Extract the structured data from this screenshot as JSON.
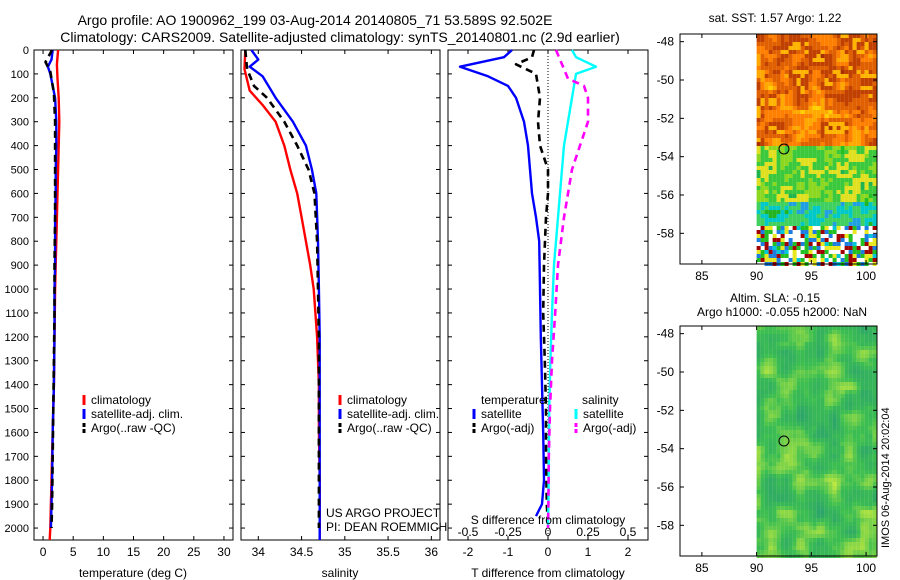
{
  "title": {
    "line1": "Argo profile: AO 1900962_199 03-Aug-2014 20140805_71 53.589S 92.502E",
    "line2": "Climatology: CARS2009. Satellite-adjusted climatology: synTS_20140801.nc (2.9d earlier)"
  },
  "colors": {
    "red": "#ff0000",
    "blue": "#0000ff",
    "black": "#000000",
    "cyan": "#00ffff",
    "magenta": "#ff00ff"
  },
  "credits": {
    "line1": "US ARGO PROJECT",
    "line2": "PI: DEAN ROEMMICH"
  },
  "timestamp": "IMOS 06-Aug-2014 20:02:04",
  "chart_data": [
    {
      "id": "temp",
      "type": "line",
      "xlabel": "temperature (deg C)",
      "xlim": [
        -1.5,
        31.5
      ],
      "xticks": [
        0,
        5,
        10,
        15,
        20,
        25,
        30
      ],
      "ylim": [
        0,
        2050
      ],
      "yticks": [
        0,
        100,
        200,
        300,
        400,
        500,
        600,
        700,
        800,
        900,
        1000,
        1100,
        1200,
        1300,
        1400,
        1500,
        1600,
        1700,
        1800,
        1900,
        2000
      ],
      "legend": [
        "climatology",
        "satellite-adj. clim.",
        "Argo(..raw -QC)"
      ],
      "series": [
        {
          "name": "climatology",
          "color": "red",
          "dash": "solid",
          "points": [
            [
              2.5,
              0
            ],
            [
              2.3,
              60
            ],
            [
              2.4,
              120
            ],
            [
              2.6,
              200
            ],
            [
              2.7,
              300
            ],
            [
              2.6,
              400
            ],
            [
              2.5,
              500
            ],
            [
              2.4,
              600
            ],
            [
              2.3,
              700
            ],
            [
              2.2,
              800
            ],
            [
              2.1,
              900
            ],
            [
              2.0,
              1000
            ],
            [
              1.9,
              1200
            ],
            [
              1.8,
              1400
            ],
            [
              1.6,
              1600
            ],
            [
              1.4,
              1800
            ],
            [
              1.2,
              2000
            ],
            [
              1.1,
              2050
            ]
          ]
        },
        {
          "name": "satellite-adj. clim.",
          "color": "blue",
          "dash": "solid",
          "points": [
            [
              1.6,
              0
            ],
            [
              1.4,
              40
            ],
            [
              0.8,
              70
            ],
            [
              1.2,
              100
            ],
            [
              1.6,
              150
            ],
            [
              2.0,
              200
            ],
            [
              2.2,
              300
            ],
            [
              2.2,
              400
            ],
            [
              2.1,
              500
            ],
            [
              2.1,
              600
            ],
            [
              2.0,
              700
            ],
            [
              2.0,
              800
            ],
            [
              2.0,
              900
            ],
            [
              1.9,
              1000
            ],
            [
              1.9,
              1200
            ],
            [
              1.8,
              1400
            ],
            [
              1.6,
              1600
            ],
            [
              1.5,
              1800
            ],
            [
              1.3,
              2000
            ]
          ]
        },
        {
          "name": "Argo(..raw -QC)",
          "color": "black",
          "dash": "dash",
          "points": [
            [
              1.5,
              0
            ],
            [
              0.4,
              50
            ],
            [
              1.2,
              90
            ],
            [
              1.8,
              180
            ],
            [
              2.0,
              300
            ],
            [
              2.0,
              500
            ],
            [
              2.0,
              700
            ],
            [
              1.9,
              900
            ],
            [
              1.9,
              1100
            ],
            [
              1.8,
              1300
            ],
            [
              1.7,
              1500
            ],
            [
              1.6,
              1700
            ],
            [
              1.5,
              1900
            ],
            [
              1.4,
              2000
            ]
          ]
        }
      ]
    },
    {
      "id": "sal",
      "type": "line",
      "xlabel": "salinity",
      "xlim": [
        33.8,
        36.1
      ],
      "xticks": [
        34,
        34.5,
        35,
        35.5,
        36
      ],
      "ylim": [
        0,
        2050
      ],
      "legend": [
        "climatology",
        "satellite-adj. clim.",
        "Argo(..raw -QC)"
      ],
      "series": [
        {
          "name": "climatology",
          "color": "red",
          "dash": "solid",
          "points": [
            [
              33.85,
              0
            ],
            [
              33.84,
              80
            ],
            [
              33.9,
              170
            ],
            [
              34.05,
              230
            ],
            [
              34.2,
              300
            ],
            [
              34.3,
              400
            ],
            [
              34.37,
              500
            ],
            [
              34.45,
              600
            ],
            [
              34.5,
              700
            ],
            [
              34.55,
              800
            ],
            [
              34.6,
              900
            ],
            [
              34.64,
              1000
            ],
            [
              34.68,
              1200
            ],
            [
              34.7,
              1400
            ],
            [
              34.7,
              1600
            ],
            [
              34.71,
              1800
            ],
            [
              34.71,
              2000
            ],
            [
              34.71,
              2050
            ]
          ]
        },
        {
          "name": "satellite-adj. clim.",
          "color": "blue",
          "dash": "solid",
          "points": [
            [
              33.92,
              0
            ],
            [
              34.0,
              40
            ],
            [
              33.9,
              70
            ],
            [
              34.05,
              110
            ],
            [
              34.2,
              200
            ],
            [
              34.4,
              300
            ],
            [
              34.55,
              400
            ],
            [
              34.62,
              500
            ],
            [
              34.67,
              600
            ],
            [
              34.69,
              800
            ],
            [
              34.7,
              1000
            ],
            [
              34.71,
              1200
            ],
            [
              34.71,
              1400
            ],
            [
              34.71,
              1600
            ],
            [
              34.71,
              1800
            ],
            [
              34.71,
              2000
            ],
            [
              34.71,
              2050
            ]
          ]
        },
        {
          "name": "Argo(..raw -QC)",
          "color": "black",
          "dash": "dash",
          "points": [
            [
              33.85,
              0
            ],
            [
              33.87,
              80
            ],
            [
              33.95,
              150
            ],
            [
              34.1,
              200
            ],
            [
              34.3,
              300
            ],
            [
              34.45,
              400
            ],
            [
              34.58,
              500
            ],
            [
              34.65,
              600
            ],
            [
              34.68,
              800
            ],
            [
              34.69,
              1000
            ],
            [
              34.7,
              1200
            ],
            [
              34.7,
              1400
            ],
            [
              34.7,
              1600
            ],
            [
              34.7,
              1800
            ],
            [
              34.7,
              2000
            ]
          ]
        }
      ]
    },
    {
      "id": "diff",
      "type": "line",
      "xlabel": "T difference from climatology",
      "xlabel_top": "S difference from climatology",
      "xlim": [
        -2.5,
        2.5
      ],
      "xticks": [
        -2,
        -1,
        0,
        1,
        2
      ],
      "sticks_labels": [
        "-0.5",
        "-0.25",
        "0",
        "0.25",
        "0.5"
      ],
      "sticks_pos": [
        -2,
        -1,
        0,
        1,
        2
      ],
      "ylim": [
        0,
        2050
      ],
      "legend_temp_title": "temperature",
      "legend_sal_title": "salinity",
      "legend_temp": [
        "satellite",
        "Argo(-adj)"
      ],
      "legend_sal": [
        "satellite",
        "Argo(-adj)"
      ],
      "series": [
        {
          "name": "T satellite",
          "color": "blue",
          "dash": "solid",
          "points": [
            [
              -0.9,
              0
            ],
            [
              -1.1,
              30
            ],
            [
              -2.2,
              70
            ],
            [
              -1.5,
              110
            ],
            [
              -1.0,
              150
            ],
            [
              -0.8,
              200
            ],
            [
              -0.6,
              300
            ],
            [
              -0.5,
              400
            ],
            [
              -0.45,
              500
            ],
            [
              -0.4,
              600
            ],
            [
              -0.3,
              700
            ],
            [
              -0.22,
              800
            ],
            [
              -0.2,
              1000
            ],
            [
              -0.18,
              1200
            ],
            [
              -0.15,
              1400
            ],
            [
              -0.12,
              1600
            ],
            [
              -0.1,
              1800
            ],
            [
              -0.15,
              1900
            ],
            [
              -0.3,
              1950
            ]
          ]
        },
        {
          "name": "T Argo(-adj)",
          "color": "black",
          "dash": "dash",
          "points": [
            [
              -0.35,
              0
            ],
            [
              -0.4,
              30
            ],
            [
              -0.8,
              60
            ],
            [
              -0.3,
              100
            ],
            [
              -0.2,
              200
            ],
            [
              -0.25,
              300
            ],
            [
              -0.2,
              400
            ],
            [
              0.0,
              500
            ],
            [
              0.0,
              600
            ],
            [
              -0.05,
              700
            ],
            [
              -0.1,
              900
            ],
            [
              -0.12,
              1100
            ],
            [
              -0.08,
              1300
            ],
            [
              -0.05,
              1500
            ],
            [
              -0.05,
              1700
            ],
            [
              -0.03,
              1900
            ],
            [
              0.0,
              2000
            ]
          ]
        },
        {
          "name": "S satellite",
          "color": "cyan",
          "dash": "solid",
          "points": [
            [
              0.6,
              0
            ],
            [
              0.7,
              30
            ],
            [
              1.2,
              70
            ],
            [
              0.7,
              100
            ],
            [
              0.6,
              200
            ],
            [
              0.5,
              300
            ],
            [
              0.4,
              400
            ],
            [
              0.35,
              500
            ],
            [
              0.3,
              600
            ],
            [
              0.25,
              700
            ],
            [
              0.15,
              900
            ],
            [
              0.1,
              1100
            ],
            [
              0.06,
              1300
            ],
            [
              0.03,
              1500
            ],
            [
              0.02,
              1700
            ],
            [
              0.01,
              1900
            ],
            [
              0.0,
              2000
            ]
          ]
        },
        {
          "name": "S Argo(-adj)",
          "color": "magenta",
          "dash": "dash",
          "points": [
            [
              0.2,
              0
            ],
            [
              0.4,
              80
            ],
            [
              0.5,
              120
            ],
            [
              0.9,
              150
            ],
            [
              1.0,
              200
            ],
            [
              1.0,
              300
            ],
            [
              0.8,
              400
            ],
            [
              0.6,
              500
            ],
            [
              0.5,
              600
            ],
            [
              0.4,
              700
            ],
            [
              0.25,
              900
            ],
            [
              0.18,
              1100
            ],
            [
              0.1,
              1300
            ],
            [
              0.05,
              1500
            ],
            [
              0.02,
              1700
            ],
            [
              0.01,
              1900
            ],
            [
              0.0,
              2000
            ]
          ]
        }
      ]
    },
    {
      "id": "map_sst",
      "type": "heatmap",
      "title": "sat. SST: 1.57 Argo: 1.22",
      "xlim": [
        83,
        101
      ],
      "ylim": [
        -59.6,
        -47.6
      ],
      "xticks": [
        85,
        90,
        95,
        100
      ],
      "yticks": [
        -48,
        -50,
        -52,
        -54,
        -56,
        -58
      ],
      "argo_position": [
        92.5,
        -53.6
      ]
    },
    {
      "id": "map_sla",
      "type": "heatmap",
      "title_line1": "Altim. SLA: -0.15",
      "title_line2": "Argo h1000: -0.055 h2000: NaN",
      "xlim": [
        83,
        101
      ],
      "ylim": [
        -59.6,
        -47.6
      ],
      "xticks": [
        85,
        90,
        95,
        100
      ],
      "yticks": [
        -48,
        -50,
        -52,
        -54,
        -56,
        -58
      ],
      "argo_position": [
        92.5,
        -53.6
      ]
    }
  ]
}
